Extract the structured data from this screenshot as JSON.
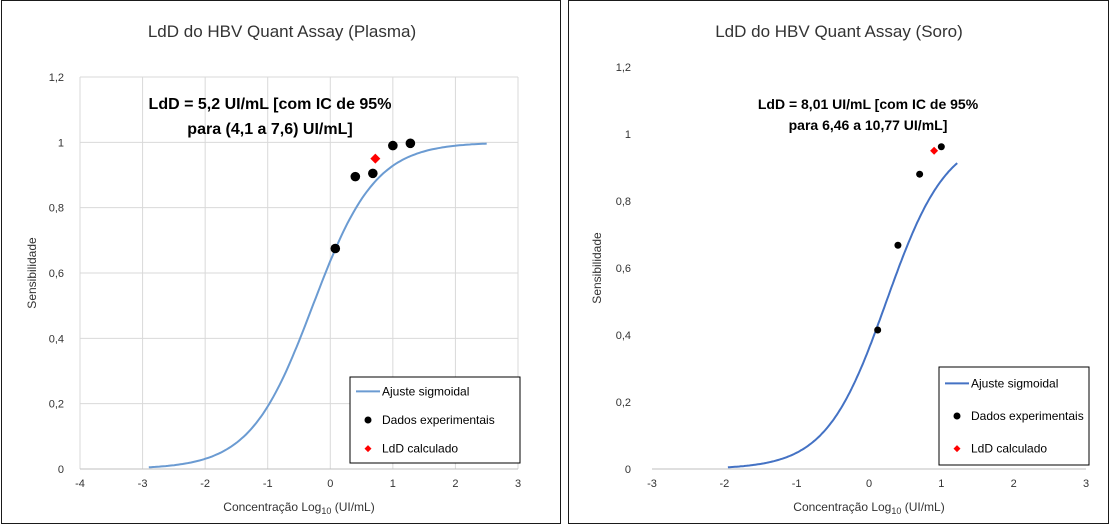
{
  "chart_data": [
    {
      "type": "scatter",
      "title": "LdD do HBV Quant Assay (Plasma)",
      "xlabel_prefix": "Concentração Log",
      "xlabel_sub": "10",
      "xlabel_suffix": " (UI/mL)",
      "ylabel": "Sensibilidade",
      "xlim": [
        -4,
        3
      ],
      "ylim": [
        0,
        1.2
      ],
      "xticks": [
        "-4",
        "-3",
        "-2",
        "-1",
        "0",
        "1",
        "2",
        "3"
      ],
      "yticks": [
        "0",
        "0,2",
        "0,4",
        "0,6",
        "0,8",
        "1",
        "1,2"
      ],
      "grid": true,
      "legend_position": "bottom-right",
      "annotation": [
        "LdD = 5,2 UI/mL [com IC de 95%",
        "para (4,1 a 7,6) UI/mL]"
      ],
      "series": [
        {
          "name": "Ajuste sigmoidal",
          "kind": "line",
          "color": "#6b9bd2",
          "x_range": [
            -2.9,
            2.5
          ],
          "midpoint": -0.28,
          "slope": 2.0
        },
        {
          "name": "Dados experimentais",
          "kind": "points",
          "color": "#000000",
          "x": [
            0.08,
            0.4,
            0.68,
            1.0,
            1.28
          ],
          "y": [
            0.675,
            0.895,
            0.905,
            0.99,
            0.997
          ]
        },
        {
          "name": "LdD calculado",
          "kind": "diamond",
          "color": "#ff0000",
          "x": [
            0.72
          ],
          "y": [
            0.95
          ]
        }
      ]
    },
    {
      "type": "scatter",
      "title": "LdD do HBV Quant Assay (Soro)",
      "xlabel_prefix": "Concentração Log",
      "xlabel_sub": "10",
      "xlabel_suffix": " (UI/mL)",
      "ylabel": "Sensibilidade",
      "xlim": [
        -3,
        3
      ],
      "ylim": [
        0,
        1.2
      ],
      "xticks": [
        "-3",
        "-2",
        "-1",
        "0",
        "1",
        "2",
        "3"
      ],
      "yticks": [
        "0",
        "0,2",
        "0,4",
        "0,6",
        "0,8",
        "1",
        "1,2"
      ],
      "grid": false,
      "legend_position": "bottom-right",
      "annotation": [
        "LdD = 8,01 UI/mL [com IC de 95%",
        "para 6,46 a 10,77 UI/mL]"
      ],
      "series": [
        {
          "name": "Ajuste sigmoidal",
          "kind": "line",
          "color": "#4472c4",
          "x_range": [
            -1.95,
            1.22
          ],
          "midpoint": 0.24,
          "slope": 2.4
        },
        {
          "name": "Dados experimentais",
          "kind": "points",
          "color": "#000000",
          "x": [
            0.12,
            0.4,
            0.7,
            1.0
          ],
          "y": [
            0.415,
            0.668,
            0.88,
            0.962
          ]
        },
        {
          "name": "LdD calculado",
          "kind": "diamond",
          "color": "#ff0000",
          "x": [
            0.9
          ],
          "y": [
            0.95
          ]
        }
      ]
    }
  ]
}
